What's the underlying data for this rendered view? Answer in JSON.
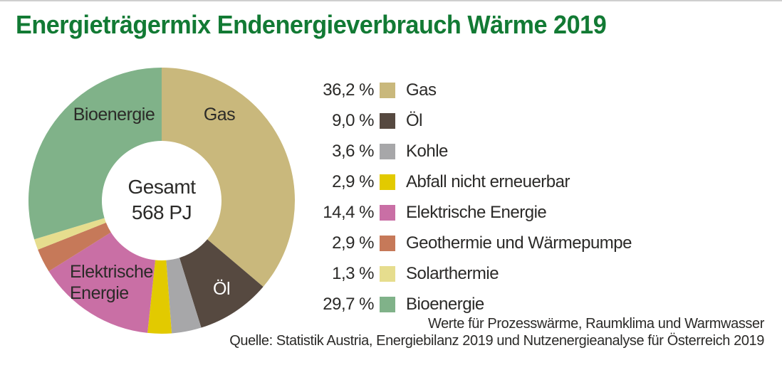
{
  "page": {
    "title": "Energieträgermix Endenergieverbrauch Wärme 2019",
    "footnote_line1": "Werte für Prozesswärme, Raumklima und Warmwasser",
    "footnote_line2": "Quelle: Statistik Austria, Energiebilanz 2019 und Nutzenergieanalyse für Österreich 2019"
  },
  "colors": {
    "title_green": "#127a34",
    "text_dark": "#2b2a28",
    "top_border_gray": "#cfcfcf",
    "background": "#ffffff"
  },
  "chart_data": {
    "type": "pie",
    "subtype": "donut",
    "title": "Energieträgermix Endenergieverbrauch Wärme 2019",
    "unit": "%",
    "direction": "clockwise",
    "start_angle_deg": 0,
    "donut_hole_ratio": 0.45,
    "center_label": {
      "line1": "Gesamt",
      "line2": "568 PJ"
    },
    "total_label": "Gesamt",
    "total_value": "568 PJ",
    "slices": [
      {
        "label": "Gas",
        "value": 36.2,
        "display_value": "36,2 %",
        "color": "#c9b87c"
      },
      {
        "label": "Öl",
        "value": 9.0,
        "display_value": "9,0 %",
        "color": "#564940"
      },
      {
        "label": "Kohle",
        "value": 3.6,
        "display_value": "3,6 %",
        "color": "#a7a7a9"
      },
      {
        "label": "Abfall nicht erneuerbar",
        "value": 2.9,
        "display_value": "2,9 %",
        "color": "#e2ca00"
      },
      {
        "label": "Elektrische Energie",
        "value": 14.4,
        "display_value": "14,4 %",
        "color": "#c96fa5"
      },
      {
        "label": "Geothermie und Wärmepumpe",
        "value": 2.9,
        "display_value": "2,9 %",
        "color": "#c67959"
      },
      {
        "label": "Solarthermie",
        "value": 1.3,
        "display_value": "1,3 %",
        "color": "#e6dd8e"
      },
      {
        "label": "Bioenergie",
        "value": 29.7,
        "display_value": "29,7 %",
        "color": "#80b289"
      }
    ],
    "on_chart_labels": {
      "bioenergie": "Bioenergie",
      "gas": "Gas",
      "oel": "Öl",
      "elektrische_line1": "Elektrische",
      "elektrische_line2": "Energie"
    },
    "legend_position": "right",
    "annotations": [
      "Werte für Prozesswärme, Raumklima und Warmwasser",
      "Quelle: Statistik Austria, Energiebilanz 2019 und Nutzenergieanalyse für Österreich 2019"
    ]
  }
}
